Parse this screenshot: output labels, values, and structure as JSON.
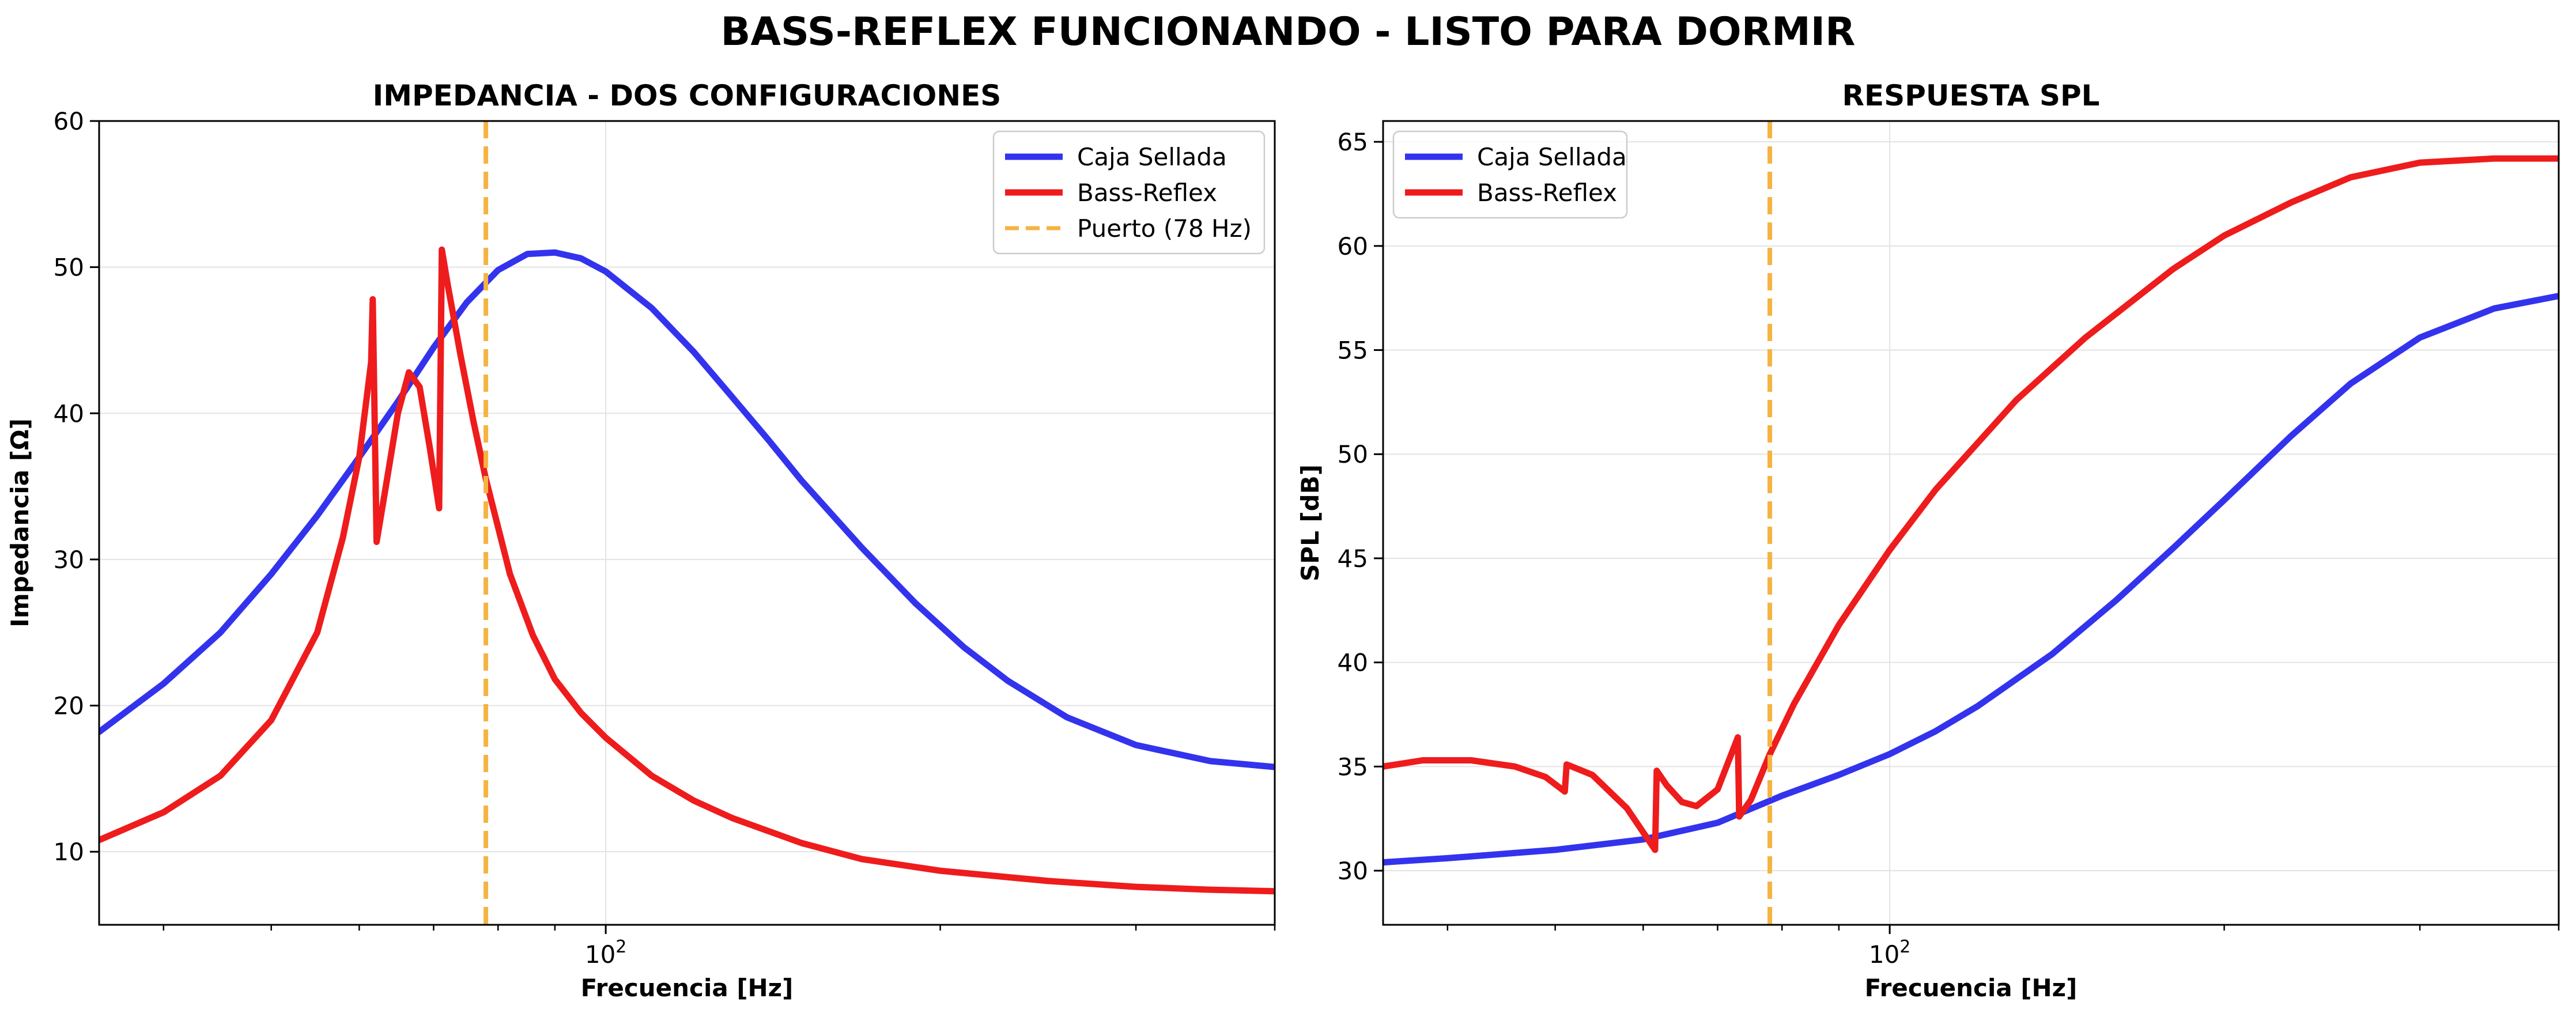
{
  "suptitle": "BASS-REFLEX FUNCIONANDO - LISTO PARA DORMIR",
  "colors": {
    "sealed": "#3333ee",
    "reflex": "#ee1c1c",
    "port": "#f5b342"
  },
  "chart_data": [
    {
      "type": "line",
      "title": "IMPEDANCIA - DOS CONFIGURACIONES",
      "xlabel": "Frecuencia [Hz]",
      "ylabel": "Impedancia [Ω]",
      "xscale": "log",
      "xlim": [
        35,
        400
      ],
      "ylim": [
        5,
        60
      ],
      "yticks": [
        10,
        20,
        30,
        40,
        50,
        60
      ],
      "xticks": [
        {
          "value": 100,
          "base": "10",
          "exp": "2"
        }
      ],
      "grid": true,
      "legend_position": "upper right",
      "vline": {
        "x": 78,
        "name": "Puerto (78 Hz)"
      },
      "series": [
        {
          "name": "Caja Sellada",
          "x": [
            35,
            40,
            45,
            50,
            55,
            60,
            65,
            70,
            75,
            80,
            85,
            90,
            95,
            100,
            110,
            120,
            130,
            140,
            150,
            170,
            190,
            210,
            230,
            260,
            300,
            350,
            400
          ],
          "y": [
            18.2,
            21.5,
            25.0,
            29.0,
            33.0,
            37.0,
            40.8,
            44.5,
            47.6,
            49.8,
            50.9,
            51.0,
            50.6,
            49.7,
            47.2,
            44.2,
            41.1,
            38.2,
            35.4,
            30.8,
            27.0,
            24.0,
            21.7,
            19.2,
            17.3,
            16.2,
            15.8
          ]
        },
        {
          "name": "Bass-Reflex",
          "x": [
            35,
            40,
            45,
            50,
            55,
            58,
            60,
            61.5,
            61.7,
            62.2,
            63.5,
            65,
            66.5,
            68,
            69.5,
            70.8,
            71.2,
            72,
            74,
            76,
            78,
            82,
            86,
            90,
            95,
            100,
            110,
            120,
            130,
            150,
            170,
            200,
            250,
            300,
            350,
            400
          ],
          "y": [
            10.8,
            12.7,
            15.2,
            19.0,
            25.0,
            31.5,
            37.0,
            43.5,
            47.8,
            31.2,
            35.3,
            40.0,
            42.8,
            41.8,
            37.5,
            33.5,
            51.2,
            49.0,
            44.0,
            39.5,
            35.5,
            29.0,
            24.8,
            21.8,
            19.5,
            17.8,
            15.2,
            13.5,
            12.3,
            10.6,
            9.5,
            8.7,
            8.0,
            7.6,
            7.4,
            7.3
          ]
        }
      ]
    },
    {
      "type": "line",
      "title": "RESPUESTA SPL",
      "xlabel": "Frecuencia [Hz]",
      "ylabel": "SPL [dB]",
      "xscale": "log",
      "xlim": [
        35,
        400
      ],
      "ylim": [
        27.4,
        66
      ],
      "yticks": [
        30,
        35,
        40,
        45,
        50,
        55,
        60,
        65
      ],
      "xticks": [
        {
          "value": 100,
          "base": "10",
          "exp": "2"
        }
      ],
      "grid": true,
      "legend_position": "upper left",
      "vline": {
        "x": 78,
        "name": ""
      },
      "series": [
        {
          "name": "Caja Sellada",
          "x": [
            35,
            40,
            50,
            60,
            70,
            80,
            90,
            100,
            110,
            120,
            140,
            160,
            180,
            200,
            230,
            260,
            300,
            350,
            400
          ],
          "y": [
            30.4,
            30.6,
            31.0,
            31.5,
            32.3,
            33.6,
            34.6,
            35.6,
            36.7,
            37.9,
            40.4,
            43.0,
            45.5,
            47.8,
            50.9,
            53.4,
            55.6,
            57.0,
            57.6
          ]
        },
        {
          "name": "Bass-Reflex",
          "x": [
            35,
            38,
            42,
            46,
            49,
            51,
            51.2,
            54,
            58,
            61.5,
            61.7,
            63,
            65,
            67,
            70,
            73,
            73.2,
            75,
            78,
            82,
            90,
            100,
            110,
            130,
            150,
            180,
            200,
            230,
            260,
            300,
            350,
            400
          ],
          "y": [
            35.0,
            35.3,
            35.3,
            35.0,
            34.5,
            33.8,
            35.1,
            34.6,
            33.0,
            31.0,
            34.8,
            34.1,
            33.3,
            33.1,
            33.9,
            36.4,
            32.6,
            33.4,
            35.6,
            38.0,
            41.8,
            45.4,
            48.3,
            52.6,
            55.6,
            58.9,
            60.5,
            62.1,
            63.3,
            64.0,
            64.2,
            64.2
          ]
        }
      ]
    }
  ]
}
